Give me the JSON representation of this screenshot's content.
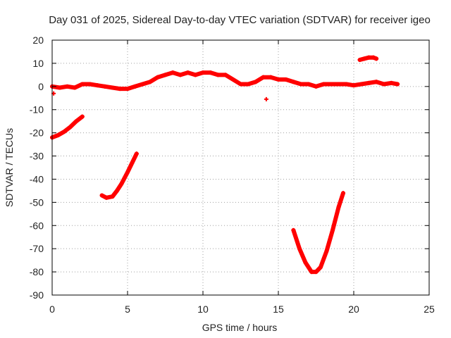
{
  "chart_data": {
    "type": "scatter",
    "title": "Day 031 of 2025, Sidereal Day-to-day VTEC variation (SDTVAR) for receiver igeo",
    "xlabel": "GPS time / hours",
    "ylabel": "SDTVAR / TECUs",
    "xlim": [
      0,
      25
    ],
    "ylim": [
      -90,
      20
    ],
    "xticks": [
      0,
      5,
      10,
      15,
      20,
      25
    ],
    "yticks": [
      -90,
      -80,
      -70,
      -60,
      -50,
      -40,
      -30,
      -20,
      -10,
      0,
      10,
      20
    ],
    "grid": true,
    "marker": "+",
    "series_color": "#ff0000",
    "series": [
      {
        "name": "main-trace",
        "x": [
          0.0,
          0.5,
          1.0,
          1.5,
          2.0,
          2.5,
          3.0,
          3.5,
          4.0,
          4.5,
          5.0,
          5.5,
          6.0,
          6.5,
          7.0,
          7.5,
          8.0,
          8.5,
          9.0,
          9.5,
          10.0,
          10.5,
          11.0,
          11.5,
          12.0,
          12.5,
          13.0,
          13.5,
          14.0,
          14.5,
          15.0,
          15.5,
          16.0,
          16.5,
          17.0,
          17.5,
          18.0,
          18.5,
          19.0,
          19.5,
          20.0,
          20.5,
          21.0,
          21.5,
          22.0,
          22.5,
          22.9
        ],
        "y": [
          0,
          -0.5,
          0,
          -0.5,
          1,
          1,
          0.5,
          0,
          -0.5,
          -1,
          -1,
          0,
          1,
          2,
          4,
          5,
          6,
          5,
          6,
          5,
          6,
          6,
          5,
          5,
          3,
          1,
          1,
          2,
          4,
          4,
          3,
          3,
          2,
          1,
          1,
          0,
          1,
          1,
          1,
          1,
          0.5,
          1,
          1.5,
          2,
          1,
          1.5,
          1
        ]
      },
      {
        "name": "arc-1",
        "x": [
          0.0,
          0.4,
          0.8,
          1.2,
          1.6,
          2.0
        ],
        "y": [
          -22,
          -21,
          -19.5,
          -17.5,
          -15,
          -13
        ]
      },
      {
        "name": "arc-2",
        "x": [
          3.3,
          3.6,
          4.0,
          4.3,
          4.6,
          5.0,
          5.3,
          5.6
        ],
        "y": [
          -47,
          -48,
          -47.5,
          -45,
          -42,
          -37,
          -33,
          -29
        ]
      },
      {
        "name": "arc-3",
        "x": [
          16.0,
          16.4,
          16.8,
          17.2,
          17.5,
          17.8,
          18.2,
          18.6,
          19.0,
          19.3
        ],
        "y": [
          -62,
          -70,
          -76,
          -80,
          -80,
          -78,
          -71,
          -62,
          -52,
          -46
        ]
      },
      {
        "name": "segment-4",
        "x": [
          20.4,
          20.7,
          21.0,
          21.3,
          21.5
        ],
        "y": [
          11.5,
          12,
          12.5,
          12.5,
          12
        ]
      },
      {
        "name": "point-5",
        "x": [
          14.2
        ],
        "y": [
          -5.5
        ]
      },
      {
        "name": "point-6",
        "x": [
          0.1
        ],
        "y": [
          -3
        ]
      }
    ]
  }
}
